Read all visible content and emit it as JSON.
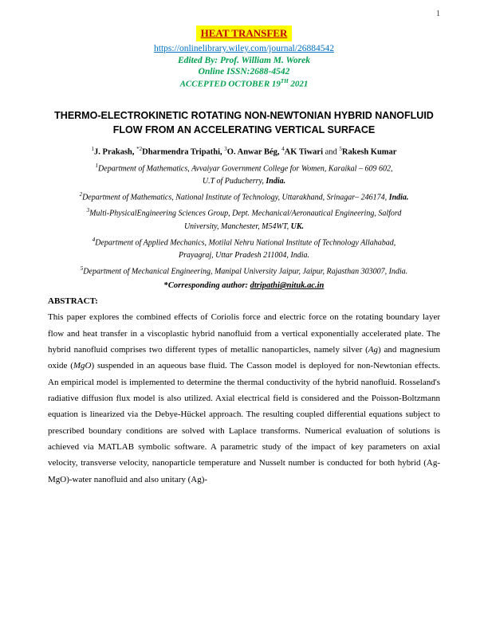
{
  "page_number": "1",
  "header": {
    "journal_name": "HEAT TRANSFER",
    "journal_name_bg": "#ffff00",
    "journal_name_color": "#c00000",
    "journal_link": "https://onlinelibrary.wiley.com/journal/26884542",
    "journal_link_color": "#0070c0",
    "editor": "Edited By: Prof. William M. Worek",
    "editor_color": "#00a050",
    "issn": "Online ISSN:2688-4542",
    "issn_color": "#00a050",
    "accepted_prefix": "ACCEPTED OCTOBER 19",
    "accepted_sup": "TH",
    "accepted_suffix": " 2021",
    "accepted_color": "#00a050"
  },
  "title_line1": "THERMO-ELECTROKINETIC ROTATING NON-NEWTONIAN HYBRID NANOFLUID",
  "title_line2": "FLOW FROM AN ACCELERATING VERTICAL SURFACE",
  "authors": {
    "a1_sup": "1",
    "a1": "J. Prakash, ",
    "a2_sup": "*2",
    "a2": "Dharmendra Tripathi, ",
    "a3_sup": "3",
    "a3": "O. Anwar Bég, ",
    "a4_sup": "4",
    "a4": "AK Tiwari",
    "and": " and ",
    "a5_sup": "5",
    "a5": "Rakesh Kumar"
  },
  "affiliations": {
    "af1_sup": "1",
    "af1_a": "Department of Mathematics, Avvaiyar Government College for Women, Karaikal – 609 602,",
    "af1_b": "U.T of Puducherry, ",
    "af1_country": "India.",
    "af2_sup": "2",
    "af2": "Department of Mathematics, National Institute of Technology, Uttarakhand, Srinagar– 246174, ",
    "af2_country": "India.",
    "af3_sup": "3",
    "af3_a": "Multi-PhysicalEngineering Sciences Group, Dept. Mechanical/Aeronautical Engineering, Salford",
    "af3_b": "University, Manchester, M54WT, ",
    "af3_country": "UK.",
    "af4_sup": "4",
    "af4_a": "Department of Applied Mechanics, Motilal Nehru National Institute of Technology Allahabad,",
    "af4_b": "Prayagraj, Uttar Pradesh 211004, India.",
    "af5_sup": "5",
    "af5": "Department of Mechanical Engineering, Manipal University Jaipur, Jaipur, Rajasthan 303007, India."
  },
  "corresponding": {
    "star": "*",
    "label": "Corresponding author: ",
    "email": "dtripathi@nituk.ac.in"
  },
  "abstract": {
    "heading": "ABSTRACT:",
    "p1": "This paper explores the combined effects of Coriolis force and electric force on the rotating boundary layer flow and heat transfer in a viscoplastic hybrid nanofluid from a vertical exponentially accelerated plate. The hybrid nanofluid comprises two different types of metallic nanoparticles, namely silver (",
    "ag": "Ag",
    "p2": ") and magnesium oxide (",
    "mgo": "MgO",
    "p3": ") suspended in an aqueous base fluid. The Casson model is deployed for non-Newtonian effects. An empirical model is implemented to determine the thermal conductivity of the hybrid nanofluid. Rosseland's radiative diffusion flux model is also utilized. Axial electrical field is considered and the Poisson-Boltzmann equation is linearized via the Debye-Hückel approach. The resulting coupled differential equations subject to prescribed boundary conditions are solved with Laplace transforms. Numerical evaluation of solutions is achieved via MATLAB symbolic software. A parametric study of the impact of key parameters on axial velocity, transverse velocity, nanoparticle temperature and Nusselt number is conducted for both hybrid (Ag-MgO)-water nanofluid and also unitary (Ag)-"
  }
}
